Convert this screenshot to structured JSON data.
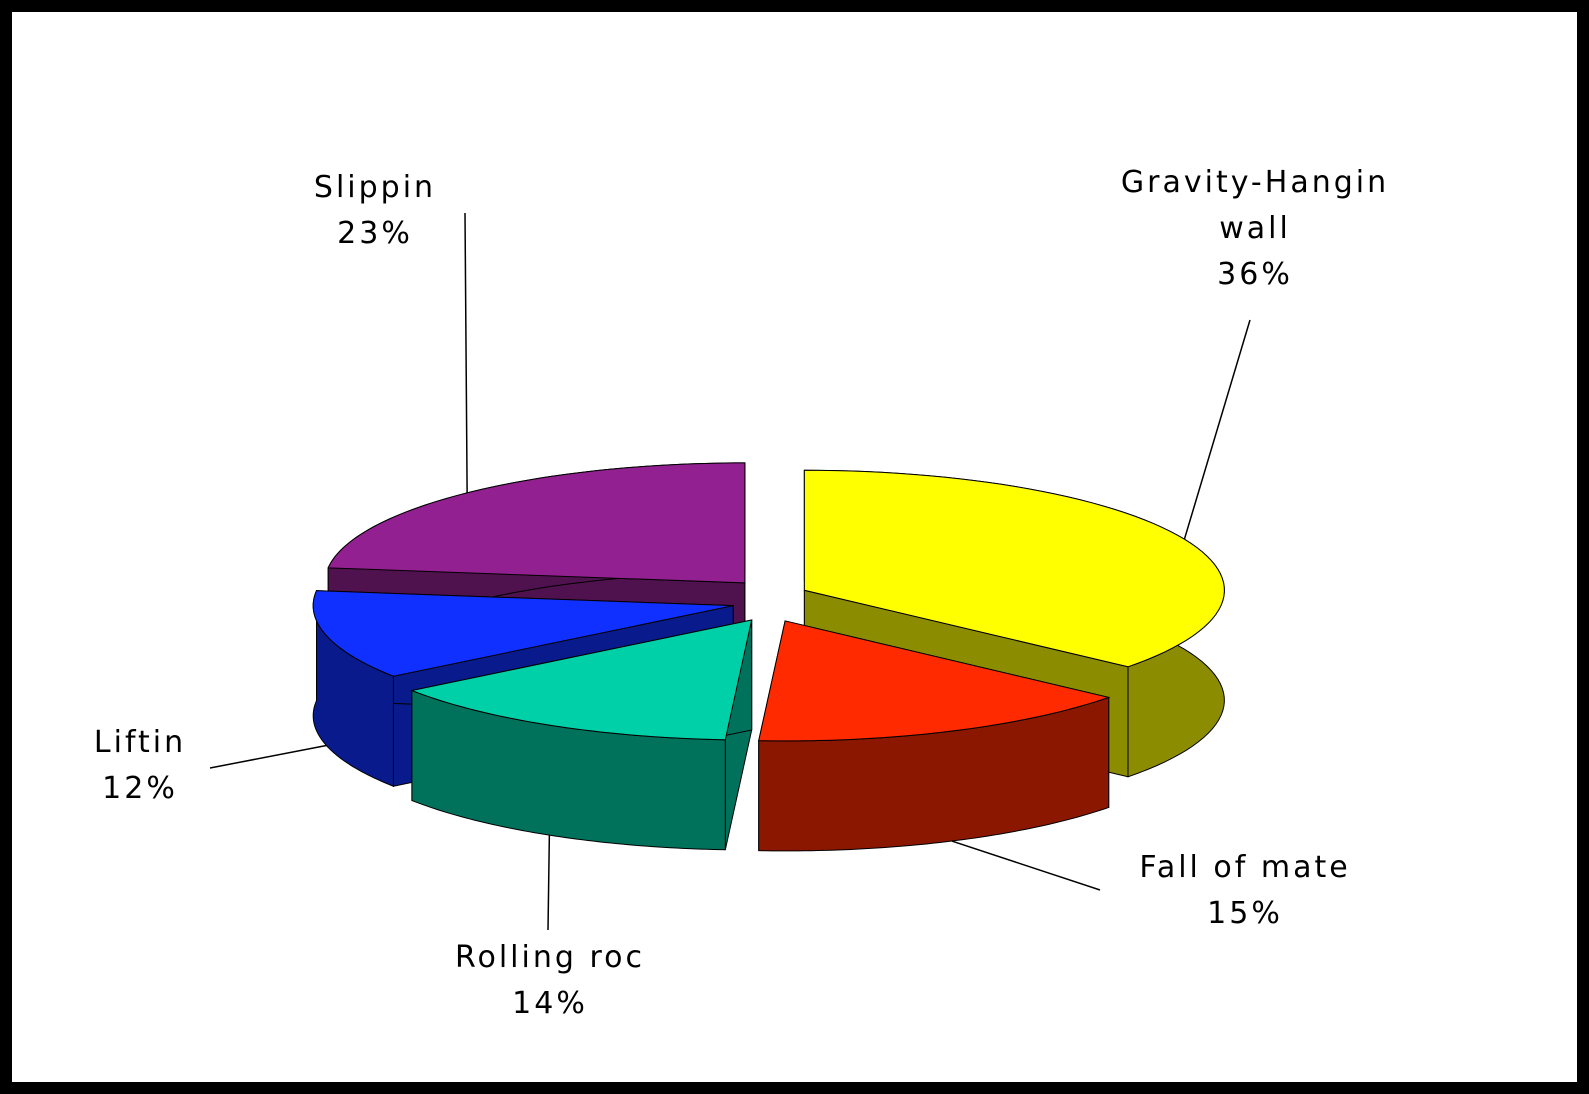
{
  "chart_data": {
    "type": "pie",
    "categories": [
      "Gravity-Hangin wall",
      "Fall of mate",
      "Rolling roc",
      "Liftin",
      "Slippin"
    ],
    "values": [
      36,
      15,
      14,
      12,
      23
    ],
    "value_labels": [
      "36%",
      "15%",
      "14%",
      "12%",
      "23%"
    ],
    "colors": [
      "#ffff00",
      "#ff2a00",
      "#00d0a8",
      "#1030ff",
      "#922090"
    ]
  }
}
